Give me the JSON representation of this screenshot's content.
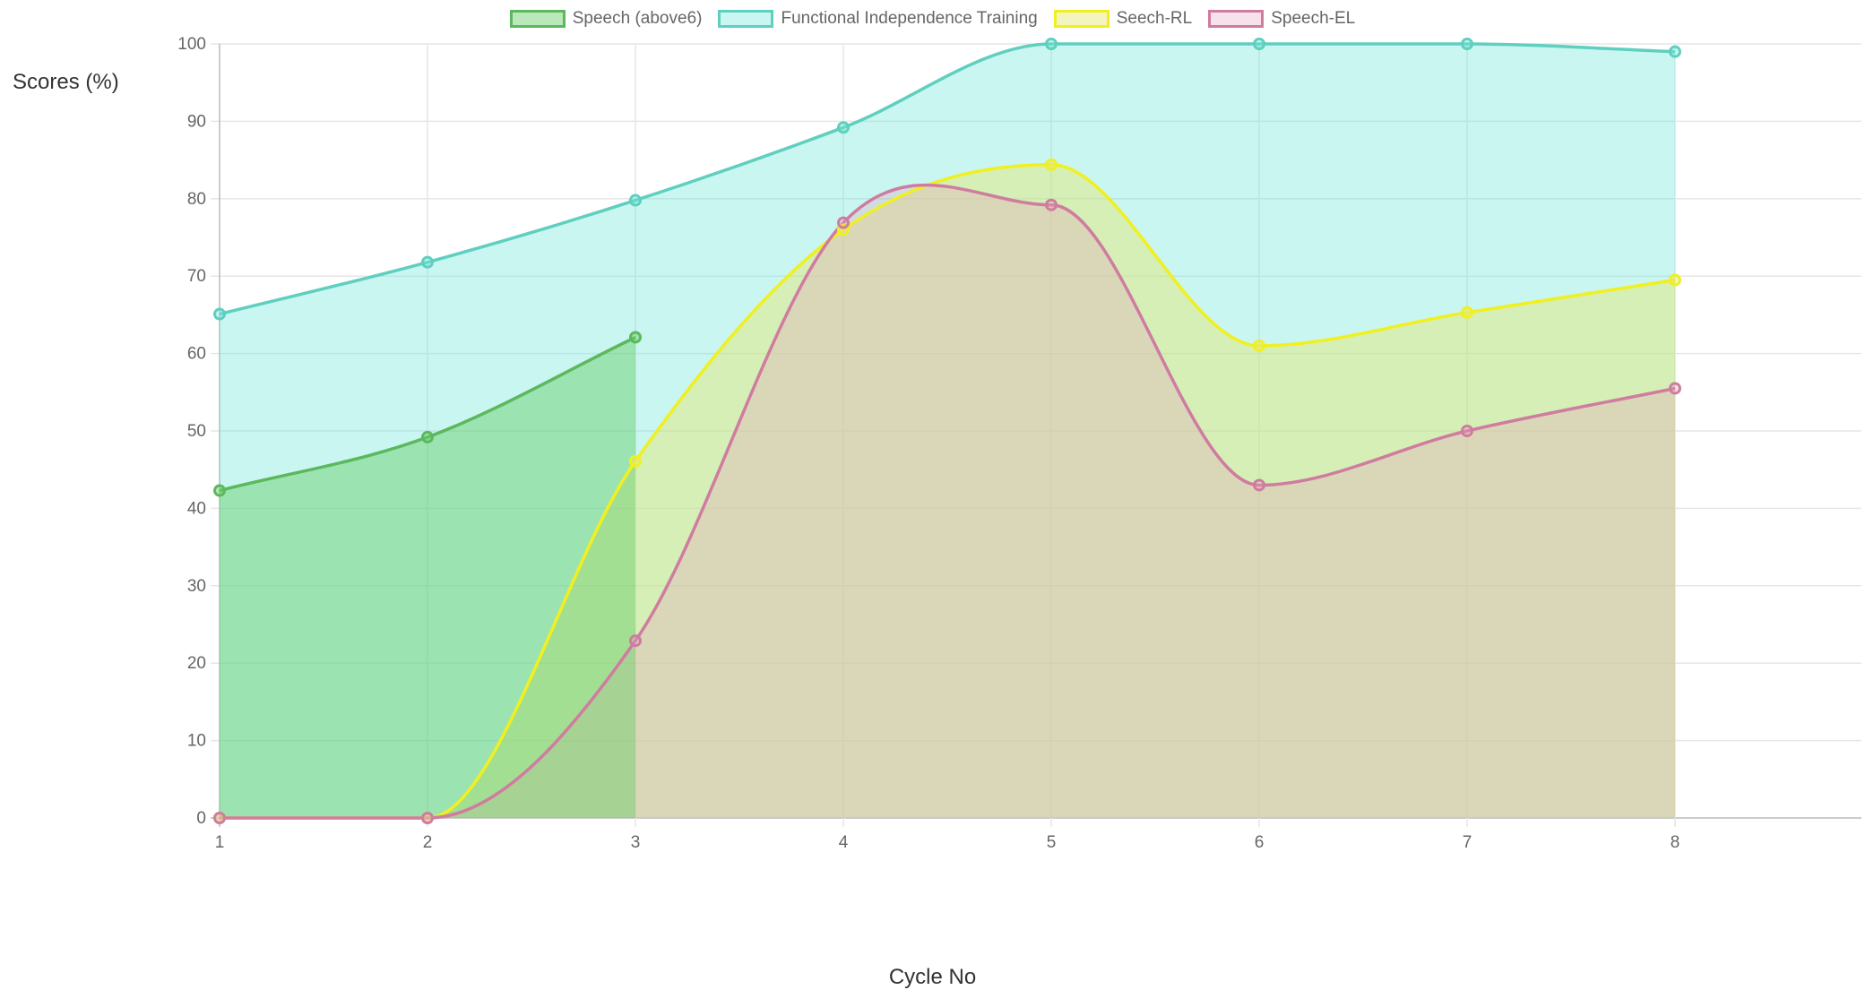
{
  "chart_data": {
    "type": "area",
    "xlabel": "Cycle No",
    "ylabel": "Scores (%)",
    "categories": [
      "1",
      "2",
      "3",
      "4",
      "5",
      "6",
      "7",
      "8"
    ],
    "ylim": [
      0,
      100
    ],
    "yticks": [
      0,
      10,
      20,
      30,
      40,
      50,
      60,
      70,
      80,
      90,
      100
    ],
    "grid": true,
    "legend_position": "top",
    "series": [
      {
        "name": "Speech (above6)",
        "values": [
          42.3,
          49.2,
          62.1,
          null,
          null,
          null,
          null,
          null
        ],
        "color": "#5cb85c",
        "fill": "rgba(102,205,102,0.45)"
      },
      {
        "name": "Functional Independence Training",
        "values": [
          65.1,
          71.8,
          79.8,
          89.2,
          100,
          100,
          100,
          99
        ],
        "color": "#5fcfbf",
        "fill": "rgba(112,232,216,0.38)"
      },
      {
        "name": "Seech-RL",
        "values": [
          0,
          0,
          46.1,
          76.0,
          84.4,
          61.0,
          65.3,
          69.5
        ],
        "color": "#f0f020",
        "fill": "rgba(230,230,110,0.45)"
      },
      {
        "name": "Speech-EL",
        "values": [
          0,
          0,
          22.9,
          76.9,
          79.2,
          43.0,
          50.0,
          55.5
        ],
        "color": "#d07ca0",
        "fill": "rgba(230,160,190,0.30)"
      }
    ]
  }
}
